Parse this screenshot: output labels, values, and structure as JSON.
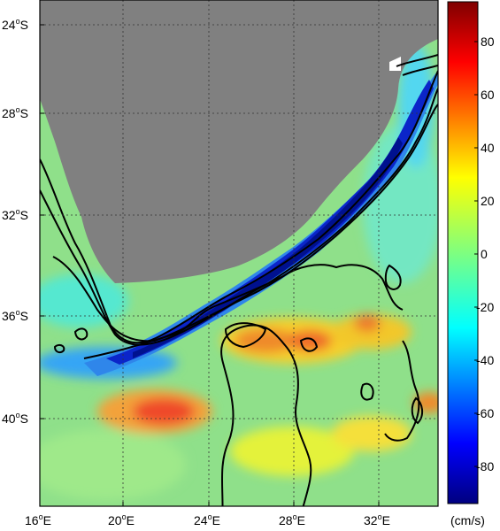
{
  "map": {
    "lat_labels": [
      {
        "deg": "24",
        "hemi": "S"
      },
      {
        "deg": "28",
        "hemi": "S"
      },
      {
        "deg": "32",
        "hemi": "S"
      },
      {
        "deg": "36",
        "hemi": "S"
      },
      {
        "deg": "40",
        "hemi": "S"
      }
    ],
    "lon_labels": [
      {
        "deg": "16",
        "hemi": "E"
      },
      {
        "deg": "20",
        "hemi": "E"
      },
      {
        "deg": "24",
        "hemi": "E"
      },
      {
        "deg": "28",
        "hemi": "E"
      },
      {
        "deg": "32",
        "hemi": "E"
      }
    ],
    "lon_range": [
      16,
      34.5
    ],
    "lat_range": [
      -43.5,
      -22.5
    ],
    "land_color": "#808080",
    "grid": true
  },
  "colorbar": {
    "unit": "(cm/s)",
    "ticks": [
      "80",
      "60",
      "40",
      "20",
      "0",
      "-20",
      "-40",
      "-60",
      "-80"
    ],
    "range": [
      -95,
      95
    ],
    "colormap": "jet"
  }
}
